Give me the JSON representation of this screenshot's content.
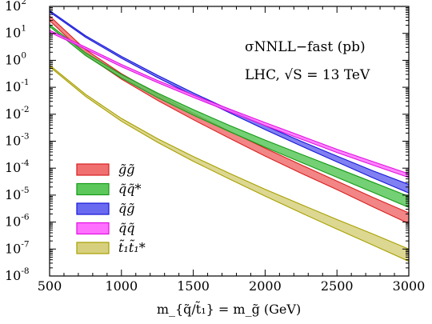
{
  "chart_data": {
    "type": "area",
    "xlabel": "m_{q̃/t̃₁} = m_g̃ (GeV)",
    "xlim": [
      500,
      3000
    ],
    "ylim_exponents": [
      -8,
      2
    ],
    "yscale": "log",
    "x_ticks": [
      "500",
      "1000",
      "1500",
      "2000",
      "2500",
      "3000"
    ],
    "y_ticks": [
      {
        "base": "10",
        "exp": "2"
      },
      {
        "base": "10",
        "exp": "1"
      },
      {
        "base": "10",
        "exp": "0"
      },
      {
        "base": "10",
        "exp": "-1"
      },
      {
        "base": "10",
        "exp": "-2"
      },
      {
        "base": "10",
        "exp": "-3"
      },
      {
        "base": "10",
        "exp": "-4"
      },
      {
        "base": "10",
        "exp": "-5"
      },
      {
        "base": "10",
        "exp": "-6"
      },
      {
        "base": "10",
        "exp": "-7"
      },
      {
        "base": "10",
        "exp": "-8"
      }
    ],
    "annotation": {
      "line1": "σNNLL−fast (pb)",
      "line2": "LHC, √S = 13 TeV"
    },
    "legend_position": "bottom-left",
    "series": [
      {
        "name": "g̃g̃",
        "fill": "#f07070",
        "stroke": "#d82020",
        "x": [
          500,
          750,
          1000,
          1250,
          1500,
          1750,
          2000,
          2250,
          2500,
          2750,
          3000
        ],
        "y_low": [
          30,
          1.6,
          0.2,
          0.033,
          0.0063,
          0.0013,
          0.00028,
          6.5e-05,
          1.6e-05,
          3.7e-06,
          8.8e-07
        ],
        "y_high": [
          44,
          2.5,
          0.32,
          0.056,
          0.011,
          0.0024,
          0.00055,
          0.000133,
          3.3e-05,
          8.2e-06,
          2.2e-06
        ]
      },
      {
        "name": "q̃q̃*",
        "fill": "#5cc85c",
        "stroke": "#169a16",
        "x": [
          500,
          750,
          1000,
          1250,
          1500,
          1750,
          2000,
          2250,
          2500,
          2750,
          3000
        ],
        "y_low": [
          18,
          1.5,
          0.22,
          0.042,
          0.0093,
          0.0023,
          0.0006,
          0.000165,
          4.6e-05,
          1.27e-05,
          3.5e-06
        ],
        "y_high": [
          21,
          1.9,
          0.3,
          0.062,
          0.0148,
          0.0039,
          0.0011,
          0.00033,
          0.0001,
          3e-05,
          9e-06
        ]
      },
      {
        "name": "q̃g̃",
        "fill": "#6a6af0",
        "stroke": "#1818d8",
        "x": [
          500,
          750,
          1000,
          1250,
          1500,
          1750,
          2000,
          2250,
          2500,
          2750,
          3000
        ],
        "y_low": [
          62,
          7.2,
          1.2,
          0.23,
          0.05,
          0.0115,
          0.0027,
          0.00067,
          0.00017,
          4.4e-05,
          1.2e-05
        ],
        "y_high": [
          70,
          8.2,
          1.4,
          0.28,
          0.062,
          0.015,
          0.0038,
          0.001,
          0.00028,
          8e-05,
          2.5e-05
        ]
      },
      {
        "name": "q̃q̃",
        "fill": "#ff70ff",
        "stroke": "#e010e0",
        "x": [
          500,
          750,
          1000,
          1250,
          1500,
          1750,
          2000,
          2250,
          2500,
          2750,
          3000
        ],
        "y_low": [
          11,
          2.6,
          0.58,
          0.15,
          0.042,
          0.0125,
          0.0038,
          0.0012,
          0.00038,
          0.00013,
          4.5e-05
        ],
        "y_high": [
          13,
          3.1,
          0.7,
          0.18,
          0.052,
          0.0158,
          0.0049,
          0.00157,
          0.0005,
          0.000175,
          6.2e-05
        ]
      },
      {
        "name": "t̃₁t̃₁*",
        "fill": "#d6d07e",
        "stroke": "#a8a000",
        "x": [
          500,
          750,
          1000,
          1250,
          1500,
          1750,
          2000,
          2250,
          2500,
          2750,
          3000
        ],
        "y_low": [
          0.58,
          0.046,
          0.0055,
          0.00092,
          0.00018,
          4e-05,
          9.2e-06,
          2.2e-06,
          5.5e-07,
          1.4e-07,
          3.5e-08
        ],
        "y_high": [
          0.66,
          0.055,
          0.007,
          0.00125,
          0.00027,
          6.5e-05,
          1.65e-05,
          4.5e-06,
          1.25e-06,
          3.6e-07,
          1e-07
        ]
      }
    ]
  }
}
